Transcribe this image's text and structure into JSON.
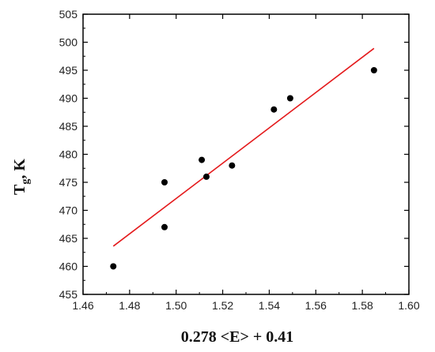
{
  "chart_data": {
    "type": "scatter",
    "xlabel": "0.278 <E> + 0.41",
    "ylabel_main": "T",
    "ylabel_sub": "g",
    "ylabel_rest": ", K",
    "xlim": [
      1.46,
      1.6
    ],
    "ylim": [
      455,
      505
    ],
    "xticks": [
      "1.46",
      "1.48",
      "1.50",
      "1.52",
      "1.54",
      "1.56",
      "1.58",
      "1.60"
    ],
    "yticks": [
      "455",
      "460",
      "465",
      "470",
      "475",
      "480",
      "485",
      "490",
      "495",
      "500",
      "505"
    ],
    "grid": false,
    "series": [
      {
        "points": [
          {
            "x": 1.473,
            "y": 460
          },
          {
            "x": 1.495,
            "y": 467
          },
          {
            "x": 1.495,
            "y": 475
          },
          {
            "x": 1.511,
            "y": 479
          },
          {
            "x": 1.513,
            "y": 476
          },
          {
            "x": 1.524,
            "y": 478
          },
          {
            "x": 1.542,
            "y": 488
          },
          {
            "x": 1.549,
            "y": 490
          },
          {
            "x": 1.585,
            "y": 495
          }
        ],
        "color": "#000000"
      }
    ],
    "fit_line": {
      "x": [
        1.473,
        1.585
      ],
      "y": [
        463.6,
        498.9
      ],
      "color": "#e41a1c"
    }
  }
}
